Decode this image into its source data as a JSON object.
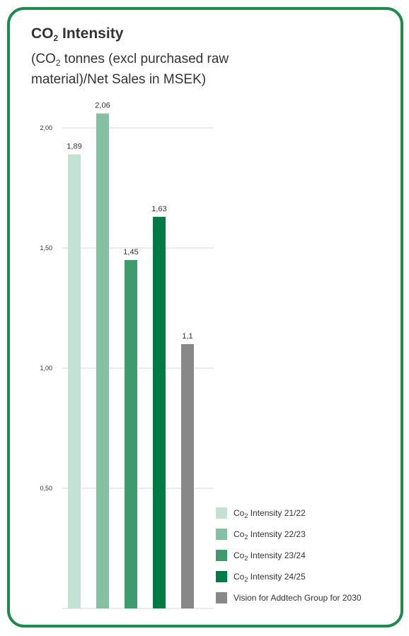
{
  "header": {
    "title_main": "CO",
    "title_sub": "2",
    "title_rest": " Intensity",
    "subtitle_open": "(CO",
    "subtitle_sub": "2",
    "subtitle_rest": " tonnes (excl purchased raw material)/Net Sales in MSEK)"
  },
  "chart_data": {
    "type": "bar",
    "title": "CO2 Intensity",
    "subtitle": "(CO2 tonnes (excl purchased raw material)/Net Sales in MSEK)",
    "categories": [
      "Co2 Intensity 21/22",
      "Co2 Intensity 22/23",
      "Co2 Intensity 23/24",
      "Co2 Intensity 24/25",
      "Vision for Addtech Group for 2030"
    ],
    "values": [
      1.89,
      2.06,
      1.45,
      1.63,
      1.1
    ],
    "value_labels": [
      "1,89",
      "2,06",
      "1,45",
      "1,63",
      "1,1"
    ],
    "colors": [
      "#c3e2d3",
      "#84c0a4",
      "#3f9a6e",
      "#007a45",
      "#888888"
    ],
    "ylim": [
      0,
      2.2
    ],
    "yticks": [
      0.5,
      1.0,
      1.5,
      2.0
    ],
    "ytick_labels": [
      "0,50",
      "1,00",
      "1,50",
      "2,00"
    ],
    "grid": true,
    "legend_position": "bottom-right"
  },
  "legend": [
    {
      "main": "Co",
      "sub": "2",
      "rest": " Intensity 21/22"
    },
    {
      "main": "Co",
      "sub": "2",
      "rest": " Intensity 22/23"
    },
    {
      "main": "Co",
      "sub": "2",
      "rest": " Intensity 23/24"
    },
    {
      "main": "Co",
      "sub": "2",
      "rest": " Intensity 24/25"
    },
    {
      "main": "Vision for Addtech Group for 2030",
      "sub": "",
      "rest": ""
    }
  ],
  "colors": {
    "border": "#1f8a4c",
    "grid": "#d9d9d9"
  }
}
